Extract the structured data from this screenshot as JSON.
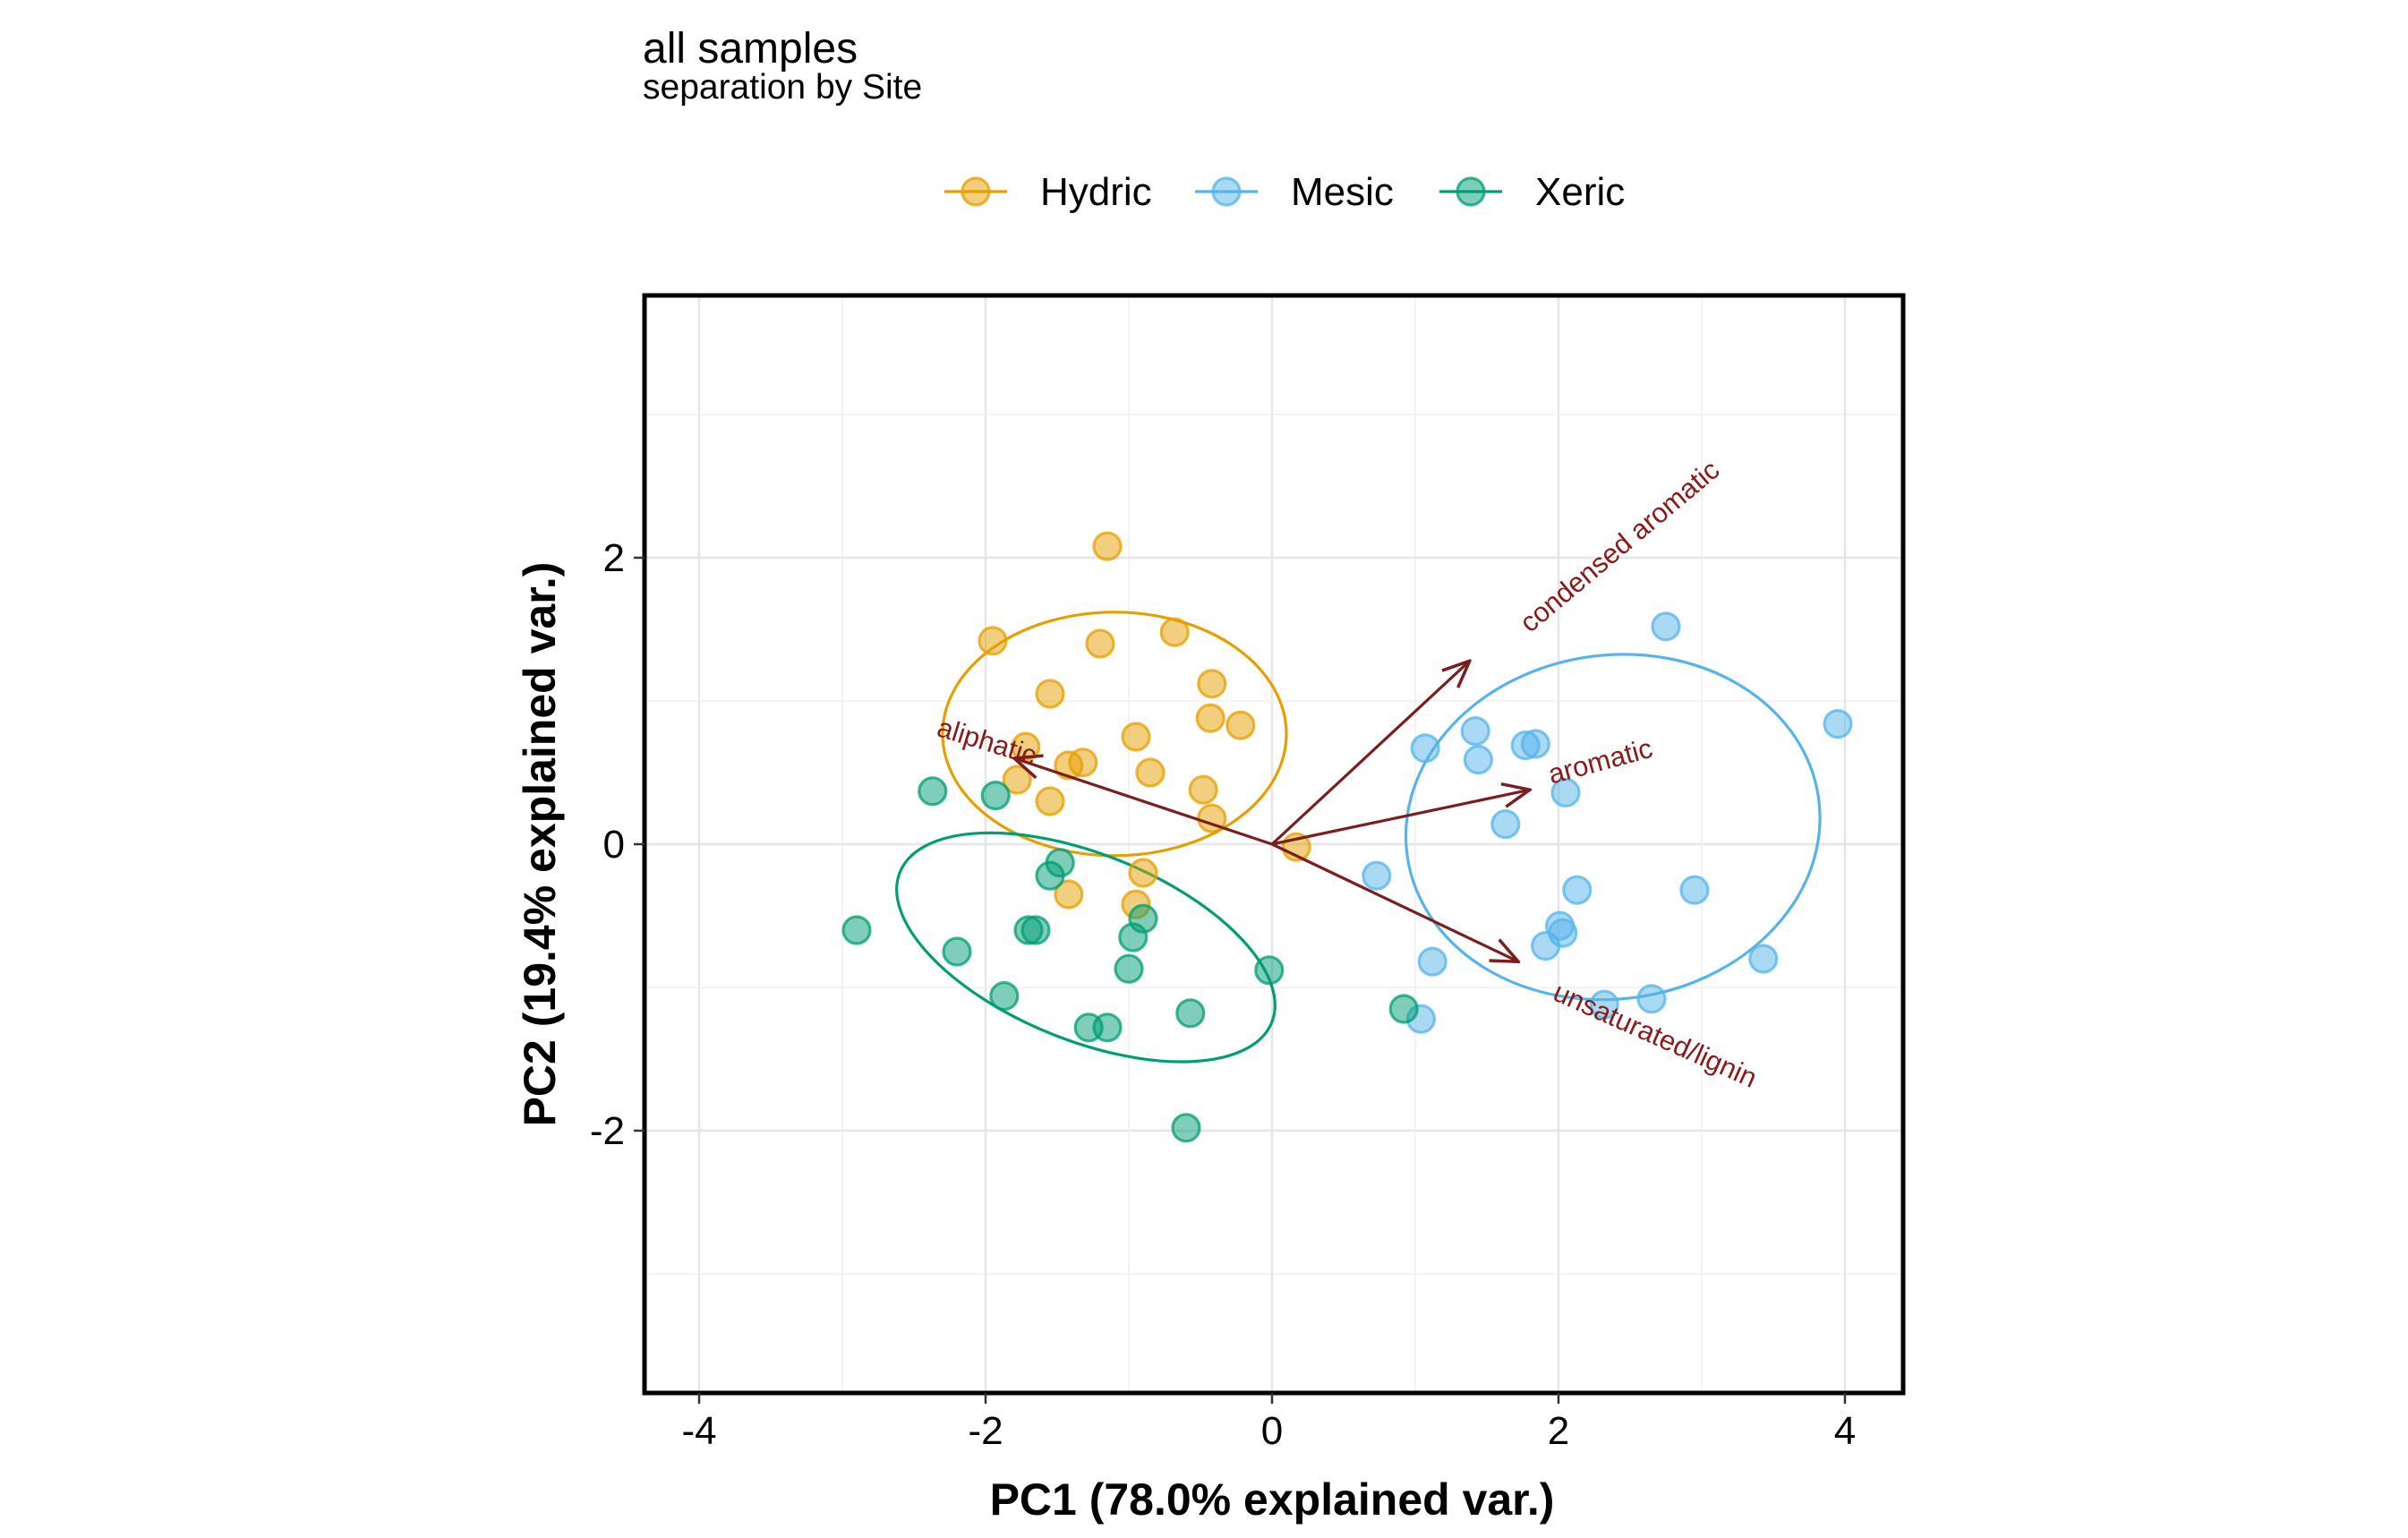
{
  "title": "all samples",
  "subtitle": "separation by Site",
  "chart_data": {
    "type": "scatter",
    "subtype": "pca-biplot",
    "xlabel": "PC1 (78.0% explained var.)",
    "ylabel": "PC2 (19.4% explained var.)",
    "xlim": [
      -4.4,
      4.4
    ],
    "ylim": [
      -3.8,
      3.8
    ],
    "x_ticks": [
      -4,
      -2,
      0,
      2,
      4
    ],
    "y_ticks": [
      -2,
      0,
      2
    ],
    "x_tick_labels": [
      "-4",
      "-2",
      "0",
      "2",
      "4"
    ],
    "y_tick_labels": [
      "-2",
      "0",
      "2"
    ],
    "grid": true,
    "legend_position": "top",
    "series": [
      {
        "name": "Hydric",
        "color": "#E69F00",
        "ellipse": {
          "cx": -1.1,
          "cy": 0.77,
          "rx": 0.85,
          "ry": 1.2,
          "angle": -90
        },
        "points": [
          {
            "x": -1.15,
            "y": 2.08
          },
          {
            "x": -1.95,
            "y": 1.42
          },
          {
            "x": -1.2,
            "y": 1.4
          },
          {
            "x": -0.68,
            "y": 1.48
          },
          {
            "x": -1.55,
            "y": 1.05
          },
          {
            "x": -0.42,
            "y": 1.12
          },
          {
            "x": -0.95,
            "y": 0.75
          },
          {
            "x": -0.43,
            "y": 0.88
          },
          {
            "x": -0.22,
            "y": 0.83
          },
          {
            "x": -1.72,
            "y": 0.68
          },
          {
            "x": -1.42,
            "y": 0.55
          },
          {
            "x": -1.32,
            "y": 0.57
          },
          {
            "x": -0.85,
            "y": 0.5
          },
          {
            "x": -1.78,
            "y": 0.45
          },
          {
            "x": -0.48,
            "y": 0.38
          },
          {
            "x": -1.55,
            "y": 0.3
          },
          {
            "x": -0.42,
            "y": 0.18
          },
          {
            "x": 0.17,
            "y": -0.02
          },
          {
            "x": -0.9,
            "y": -0.2
          },
          {
            "x": -0.95,
            "y": -0.42
          },
          {
            "x": -1.42,
            "y": -0.35
          }
        ]
      },
      {
        "name": "Mesic",
        "color": "#56B4E9",
        "ellipse": {
          "cx": 2.38,
          "cy": 0.12,
          "rx": 1.45,
          "ry": 1.2,
          "angle": -8
        },
        "points": [
          {
            "x": 2.75,
            "y": 1.52
          },
          {
            "x": 3.95,
            "y": 0.84
          },
          {
            "x": 1.42,
            "y": 0.79
          },
          {
            "x": 1.77,
            "y": 0.69
          },
          {
            "x": 1.84,
            "y": 0.7
          },
          {
            "x": 1.07,
            "y": 0.67
          },
          {
            "x": 1.44,
            "y": 0.59
          },
          {
            "x": 2.05,
            "y": 0.36
          },
          {
            "x": 1.63,
            "y": 0.14
          },
          {
            "x": 0.73,
            "y": -0.22
          },
          {
            "x": 2.13,
            "y": -0.32
          },
          {
            "x": 2.95,
            "y": -0.32
          },
          {
            "x": 2.01,
            "y": -0.57
          },
          {
            "x": 2.03,
            "y": -0.62
          },
          {
            "x": 1.91,
            "y": -0.71
          },
          {
            "x": 1.12,
            "y": -0.82
          },
          {
            "x": 3.43,
            "y": -0.8
          },
          {
            "x": 2.32,
            "y": -1.12
          },
          {
            "x": 2.65,
            "y": -1.08
          },
          {
            "x": 1.04,
            "y": -1.22
          }
        ]
      },
      {
        "name": "Xeric",
        "color": "#009E73",
        "ellipse": {
          "cx": -1.3,
          "cy": -0.72,
          "rx": 1.4,
          "ry": 0.65,
          "angle": 22
        },
        "points": [
          {
            "x": -2.37,
            "y": 0.37
          },
          {
            "x": -1.93,
            "y": 0.34
          },
          {
            "x": -1.48,
            "y": -0.13
          },
          {
            "x": -1.55,
            "y": -0.22
          },
          {
            "x": -1.7,
            "y": -0.6
          },
          {
            "x": -1.65,
            "y": -0.6
          },
          {
            "x": -2.9,
            "y": -0.6
          },
          {
            "x": -0.9,
            "y": -0.52
          },
          {
            "x": -0.97,
            "y": -0.65
          },
          {
            "x": -2.2,
            "y": -0.75
          },
          {
            "x": -1.0,
            "y": -0.87
          },
          {
            "x": -0.02,
            "y": -0.88
          },
          {
            "x": -1.87,
            "y": -1.06
          },
          {
            "x": -0.57,
            "y": -1.18
          },
          {
            "x": -1.28,
            "y": -1.28
          },
          {
            "x": -1.15,
            "y": -1.28
          },
          {
            "x": 0.92,
            "y": -1.15
          },
          {
            "x": -0.6,
            "y": -1.98
          }
        ]
      }
    ],
    "loadings": [
      {
        "label": "condensed aromatic",
        "x": 1.38,
        "y": 1.28,
        "label_x": 1.8,
        "label_y": 1.47,
        "label_angle": -40
      },
      {
        "label": "aliphatic",
        "x": -1.8,
        "y": 0.6,
        "label_x": -2.35,
        "label_y": 0.76,
        "label_angle": 17
      },
      {
        "label": "aromatic",
        "x": 1.8,
        "y": 0.38,
        "label_x": 1.95,
        "label_y": 0.42,
        "label_angle": -15
      },
      {
        "label": "unsaturated/lignin",
        "x": 1.72,
        "y": -0.82,
        "label_x": 1.95,
        "label_y": -1.08,
        "label_angle": 24
      }
    ],
    "loading_color": "#7b1e1e"
  }
}
